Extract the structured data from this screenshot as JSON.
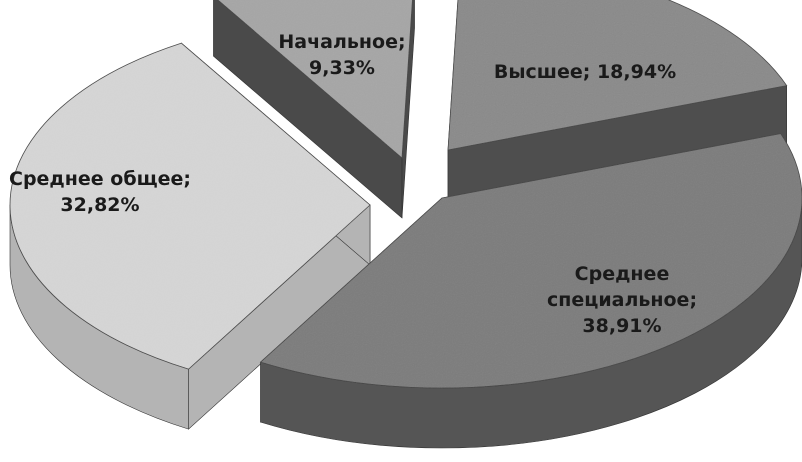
{
  "chart_data": {
    "type": "pie",
    "style": "3d-exploded",
    "title": "",
    "slices": [
      {
        "label": "Высшее",
        "value": 18.94,
        "value_text": "18,94%",
        "color": "#8a8a8a",
        "side_color": "#4e4e4e"
      },
      {
        "label": "Среднее специальное",
        "value": 38.91,
        "value_text": "38,91%",
        "color": "#7c7c7c",
        "side_color": "#555555"
      },
      {
        "label": "Среднее общее",
        "value": 32.82,
        "value_text": "32,82%",
        "color": "#d6d6d6",
        "side_color": "#b4b4b4"
      },
      {
        "label": "Начальное",
        "value": 9.33,
        "value_text": "9,33%",
        "color": "#a6a6a6",
        "side_color": "#4a4a4a"
      }
    ]
  }
}
